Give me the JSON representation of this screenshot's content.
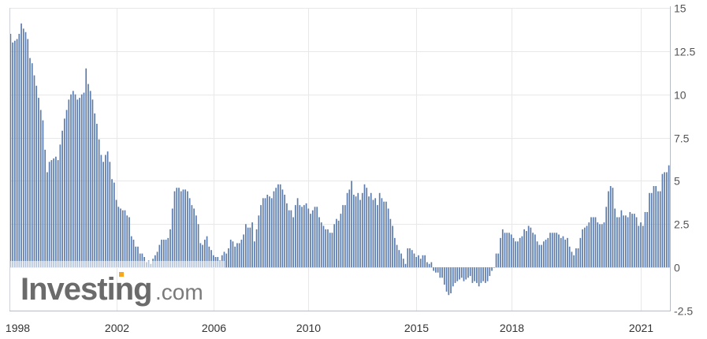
{
  "watermark": {
    "main": "Investing",
    "suffix": ".com"
  },
  "colors": {
    "bar": "#5b7cac",
    "grid": "#e8e8e8",
    "axis": "#b8bcc4",
    "logo_dot": "#f5a623"
  },
  "chart_data": {
    "type": "bar",
    "title": "",
    "xlabel": "",
    "ylabel": "",
    "ylim": [
      -2.5,
      15
    ],
    "y_ticks": [
      "15",
      "12.5",
      "10",
      "7.5",
      "5",
      "2.5",
      "0",
      "-2.5"
    ],
    "y_tick_values": [
      15,
      12.5,
      10,
      7.5,
      5,
      2.5,
      0,
      -2.5
    ],
    "x_ticks": [
      {
        "label": "1998",
        "index": 3
      },
      {
        "label": "2002",
        "index": 49
      },
      {
        "label": "2006",
        "index": 94
      },
      {
        "label": "2010",
        "index": 138
      },
      {
        "label": "2015",
        "index": 188
      },
      {
        "label": "2018",
        "index": 232
      },
      {
        "label": "2021",
        "index": 292
      }
    ],
    "grid": true,
    "y_axis_side": "right",
    "values": [
      13.5,
      13.0,
      13.1,
      13.2,
      13.5,
      14.1,
      13.8,
      13.6,
      13.2,
      12.1,
      11.8,
      11.1,
      10.5,
      9.8,
      9.1,
      8.5,
      6.8,
      5.5,
      6.1,
      6.2,
      6.3,
      6.4,
      6.2,
      7.1,
      7.9,
      8.6,
      9.1,
      9.7,
      10.0,
      10.2,
      10.0,
      9.7,
      9.8,
      10.0,
      10.1,
      11.5,
      10.6,
      10.2,
      9.7,
      8.9,
      8.3,
      7.4,
      6.5,
      6.1,
      6.5,
      6.7,
      6.1,
      5.1,
      4.9,
      3.9,
      3.5,
      3.4,
      3.3,
      3.3,
      3.0,
      2.9,
      1.8,
      1.6,
      1.2,
      1.2,
      0.8,
      0.8,
      0.6,
      0.3,
      0.4,
      0.2,
      0.5,
      0.7,
      0.9,
      1.3,
      1.6,
      1.6,
      1.6,
      1.7,
      2.2,
      3.4,
      4.4,
      4.6,
      4.6,
      4.4,
      4.5,
      4.5,
      4.4,
      4.0,
      3.6,
      3.4,
      3.0,
      2.5,
      1.4,
      1.3,
      1.6,
      1.8,
      1.2,
      1.0,
      0.7,
      0.6,
      0.6,
      0.4,
      0.7,
      0.9,
      0.8,
      1.1,
      1.6,
      1.5,
      1.2,
      1.4,
      1.4,
      1.6,
      1.9,
      2.5,
      2.3,
      2.3,
      2.6,
      1.5,
      2.2,
      3.0,
      3.6,
      4.0,
      4.0,
      4.2,
      4.1,
      4.0,
      4.4,
      4.6,
      4.8,
      4.8,
      4.5,
      4.2,
      3.7,
      3.3,
      3.3,
      2.9,
      3.6,
      4.0,
      3.6,
      3.5,
      3.6,
      3.7,
      3.4,
      3.1,
      3.3,
      3.5,
      3.5,
      2.9,
      2.6,
      2.4,
      2.2,
      2.2,
      2.0,
      2.0,
      2.5,
      2.8,
      2.7,
      3.1,
      3.6,
      3.6,
      4.3,
      4.5,
      5.0,
      4.2,
      4.1,
      4.3,
      3.9,
      4.3,
      4.8,
      4.6,
      4.1,
      4.3,
      3.9,
      4.0,
      3.6,
      4.3,
      4.0,
      3.8,
      3.8,
      3.4,
      2.8,
      2.4,
      1.7,
      1.3,
      1.0,
      0.8,
      0.5,
      0.2,
      1.1,
      1.1,
      1.0,
      0.8,
      0.6,
      0.7,
      0.5,
      0.7,
      0.7,
      0.3,
      0.2,
      0.3,
      -0.2,
      -0.3,
      -0.3,
      -0.6,
      -0.6,
      -1.0,
      -1.4,
      -1.6,
      -1.5,
      -1.1,
      -0.9,
      -0.8,
      -0.7,
      -0.6,
      -0.8,
      -0.7,
      -0.6,
      -0.5,
      -0.9,
      -0.8,
      -0.9,
      -1.1,
      -0.9,
      -0.8,
      -0.9,
      -0.8,
      -0.5,
      -0.2,
      0.0,
      0.8,
      0.8,
      1.7,
      2.2,
      2.0,
      2.0,
      2.0,
      1.9,
      1.7,
      1.5,
      1.5,
      1.7,
      1.8,
      2.2,
      2.1,
      2.4,
      2.3,
      2.0,
      1.9,
      1.5,
      1.3,
      1.3,
      1.5,
      1.6,
      1.7,
      2.0,
      2.0,
      2.0,
      2.0,
      1.9,
      1.7,
      1.8,
      1.6,
      1.7,
      1.2,
      0.9,
      0.7,
      1.1,
      1.1,
      1.7,
      2.2,
      2.3,
      2.4,
      2.6,
      2.9,
      2.9,
      2.9,
      2.6,
      2.5,
      2.5,
      2.6,
      3.5,
      4.4,
      4.7,
      4.6,
      3.4,
      2.9,
      2.9,
      3.3,
      3.0,
      3.0,
      2.9,
      3.2,
      3.1,
      3.1,
      2.9,
      2.4,
      2.6,
      2.4,
      3.2,
      3.2,
      4.3,
      4.3,
      4.7,
      4.7,
      4.4,
      4.4,
      5.4,
      5.5,
      5.5,
      5.9
    ]
  }
}
